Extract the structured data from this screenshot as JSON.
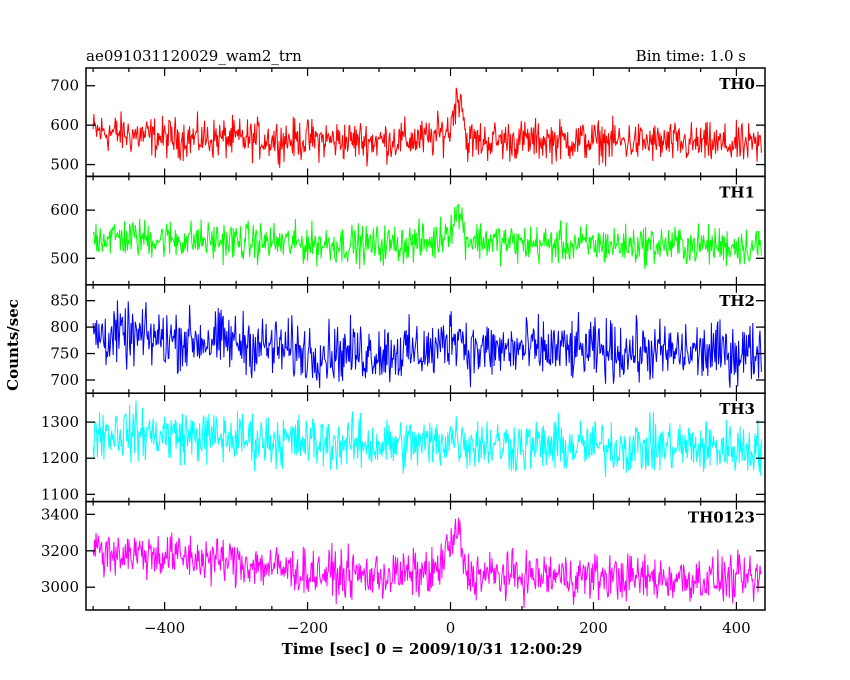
{
  "header": {
    "title": "ae091031120029_wam2_trn",
    "bin_time": "Bin time: 1.0 s"
  },
  "chart_data": {
    "type": "line",
    "title": "ae091031120029_wam2_trn",
    "subtitle": "Bin time: 1.0 s",
    "xlabel": "Time [sec] 0 = 2009/10/31 12:00:29",
    "ylabel": "Counts/sec",
    "xlim": [
      -510,
      440
    ],
    "x_ticks": [
      -400,
      -200,
      0,
      200,
      400
    ],
    "x_tick_labels": [
      "−400",
      "−200",
      "0",
      "200",
      "400"
    ],
    "grid": false,
    "panels": [
      {
        "name": "TH0",
        "color": "#ff0000",
        "ylim": [
          470,
          745
        ],
        "y_ticks": [
          500,
          600,
          700
        ],
        "y_tick_labels": [
          "500",
          "600",
          "700"
        ],
        "profile": [
          [
            -500,
            585
          ],
          [
            -400,
            568
          ],
          [
            -300,
            565
          ],
          [
            -200,
            563
          ],
          [
            -100,
            560
          ],
          [
            -30,
            565
          ],
          [
            0,
            590
          ],
          [
            5,
            650
          ],
          [
            15,
            680
          ],
          [
            22,
            560
          ],
          [
            100,
            562
          ],
          [
            200,
            560
          ],
          [
            300,
            555
          ],
          [
            435,
            548
          ]
        ],
        "noise_amplitude": 38
      },
      {
        "name": "TH1",
        "color": "#00ff00",
        "ylim": [
          445,
          670
        ],
        "y_ticks": [
          500,
          600
        ],
        "y_tick_labels": [
          "500",
          "600"
        ],
        "profile": [
          [
            -500,
            545
          ],
          [
            -400,
            540
          ],
          [
            -300,
            535
          ],
          [
            -200,
            530
          ],
          [
            -100,
            528
          ],
          [
            -20,
            535
          ],
          [
            2,
            570
          ],
          [
            12,
            600
          ],
          [
            22,
            540
          ],
          [
            100,
            530
          ],
          [
            200,
            528
          ],
          [
            300,
            528
          ],
          [
            435,
            525
          ]
        ],
        "noise_amplitude": 30
      },
      {
        "name": "TH2",
        "color": "#0000ff",
        "ylim": [
          675,
          880
        ],
        "y_ticks": [
          700,
          750,
          800,
          850
        ],
        "y_tick_labels": [
          "700",
          "750",
          "800",
          "850"
        ],
        "profile": [
          [
            -500,
            785
          ],
          [
            -400,
            778
          ],
          [
            -300,
            772
          ],
          [
            -200,
            752
          ],
          [
            -100,
            752
          ],
          [
            -20,
            755
          ],
          [
            5,
            790
          ],
          [
            15,
            785
          ],
          [
            25,
            755
          ],
          [
            100,
            758
          ],
          [
            200,
            755
          ],
          [
            300,
            752
          ],
          [
            435,
            752
          ]
        ],
        "noise_amplitude": 42
      },
      {
        "name": "TH3",
        "color": "#00ffff",
        "ylim": [
          1080,
          1380
        ],
        "y_ticks": [
          1100,
          1200,
          1300
        ],
        "y_tick_labels": [
          "1100",
          "1200",
          "1300"
        ],
        "profile": [
          [
            -500,
            1275
          ],
          [
            -400,
            1265
          ],
          [
            -300,
            1255
          ],
          [
            -200,
            1245
          ],
          [
            -100,
            1238
          ],
          [
            -20,
            1240
          ],
          [
            5,
            1262
          ],
          [
            20,
            1245
          ],
          [
            100,
            1235
          ],
          [
            200,
            1232
          ],
          [
            300,
            1232
          ],
          [
            435,
            1228
          ]
        ],
        "noise_amplitude": 55
      },
      {
        "name": "TH0123",
        "color": "#ff00ff",
        "ylim": [
          2875,
          3470
        ],
        "y_ticks": [
          3000,
          3200,
          3400
        ],
        "y_tick_labels": [
          "3000",
          "3200",
          "3400"
        ],
        "profile": [
          [
            -500,
            3200
          ],
          [
            -400,
            3175
          ],
          [
            -300,
            3140
          ],
          [
            -200,
            3080
          ],
          [
            -100,
            3062
          ],
          [
            -20,
            3080
          ],
          [
            0,
            3230
          ],
          [
            12,
            3300
          ],
          [
            22,
            3070
          ],
          [
            100,
            3062
          ],
          [
            200,
            3058
          ],
          [
            300,
            3048
          ],
          [
            435,
            3040
          ]
        ],
        "noise_amplitude": 95
      }
    ]
  }
}
